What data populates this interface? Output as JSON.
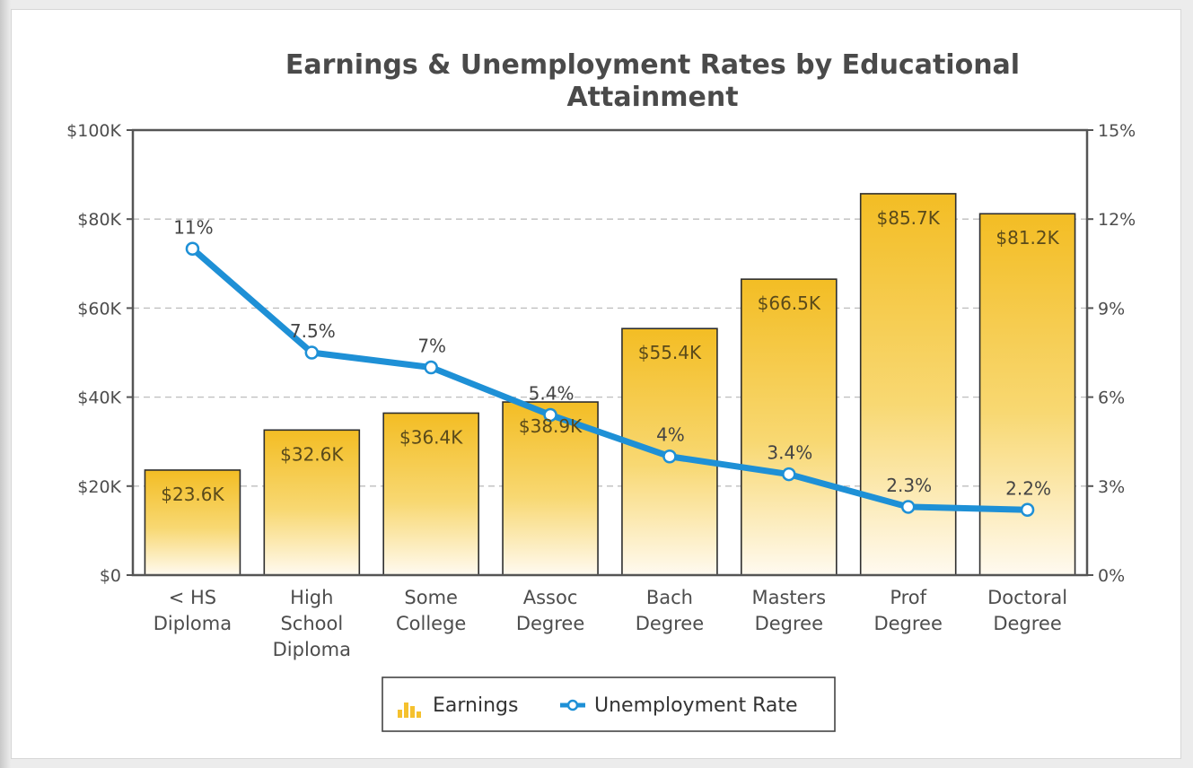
{
  "chart_data": {
    "type": "bar",
    "title": [
      "Earnings & Unemployment Rates by Educational",
      "Attainment"
    ],
    "categories": [
      [
        "< HS",
        "Diploma"
      ],
      [
        "High",
        "School",
        "Diploma"
      ],
      [
        "Some",
        "College"
      ],
      [
        "Assoc",
        "Degree"
      ],
      [
        "Bach",
        "Degree"
      ],
      [
        "Masters",
        "Degree"
      ],
      [
        "Prof",
        "Degree"
      ],
      [
        "Doctoral",
        "Degree"
      ]
    ],
    "series": [
      {
        "name": "Earnings",
        "type": "bar",
        "axis": "left",
        "values": [
          23600,
          32600,
          36400,
          38900,
          55400,
          66500,
          85700,
          81200
        ],
        "labels": [
          "$23.6K",
          "$32.6K",
          "$36.4K",
          "$38.9K",
          "$55.4K",
          "$66.5K",
          "$85.7K",
          "$81.2K"
        ],
        "color": "#f5c12e"
      },
      {
        "name": "Unemployment Rate",
        "type": "line",
        "axis": "right",
        "values": [
          11,
          7.5,
          7,
          5.4,
          4,
          3.4,
          2.3,
          2.2
        ],
        "labels": [
          "11%",
          "7.5%",
          "7%",
          "5.4%",
          "4%",
          "3.4%",
          "2.3%",
          "2.2%"
        ],
        "color": "#1e90d6"
      }
    ],
    "y_left": {
      "min": 0,
      "max": 100000,
      "ticks": [
        0,
        20000,
        40000,
        60000,
        80000,
        100000
      ],
      "tick_labels": [
        "$0",
        "$20K",
        "$40K",
        "$60K",
        "$80K",
        "$100K"
      ]
    },
    "y_right": {
      "min": 0,
      "max": 15,
      "ticks": [
        0,
        3,
        6,
        9,
        12,
        15
      ],
      "tick_labels": [
        "0%",
        "3%",
        "6%",
        "9%",
        "12%",
        "15%"
      ]
    },
    "grid": true,
    "legend": {
      "position": "bottom-center",
      "items": [
        "Earnings",
        "Unemployment Rate"
      ]
    }
  }
}
